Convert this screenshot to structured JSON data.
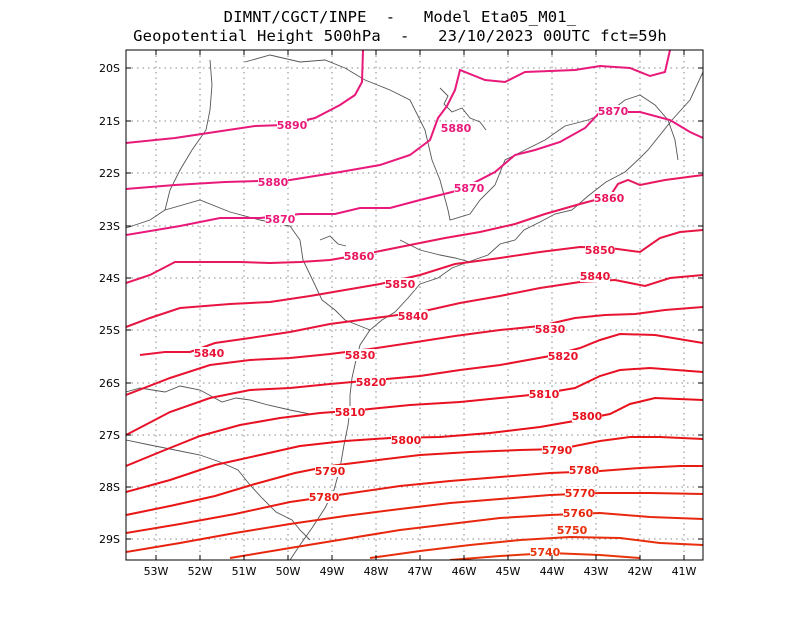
{
  "header": {
    "line1": "DIMNT/CGCT/INPE  -   Model Eta05_M01_",
    "line2": "Geopotential Height 500hPa  -   23/10/2023 00UTC fct=59h"
  },
  "map": {
    "lat_labels": [
      "20S",
      "21S",
      "22S",
      "23S",
      "24S",
      "25S",
      "26S",
      "27S",
      "28S",
      "29S"
    ],
    "lon_labels": [
      "53W",
      "52W",
      "51W",
      "50W",
      "49W",
      "48W",
      "47W",
      "46W",
      "45W",
      "44W",
      "43W",
      "42W",
      "41W"
    ],
    "lon_range": [
      -53.6,
      -40.5
    ],
    "lat_range": [
      -29.4,
      -19.6
    ]
  },
  "contour_colors": {
    "5890": "#e8197a",
    "5880": "#e8197a",
    "5870": "#e8197a",
    "5860": "#e8175e",
    "5850": "#e81543",
    "5840": "#e8143a",
    "5830": "#e81432",
    "5820": "#e8122a",
    "5810": "#e81122",
    "5800": "#e8101a",
    "5790": "#e81614",
    "5780": "#e81c12",
    "5770": "#e82210",
    "5760": "#e8280e",
    "5750": "#e82e0c",
    "5740": "#e8340a"
  },
  "contour_labels": [
    "5890",
    "5880",
    "5880",
    "5870",
    "5870",
    "5870",
    "5860",
    "5860",
    "5850",
    "5850",
    "5840",
    "5840",
    "5840",
    "5830",
    "5830",
    "5820",
    "5820",
    "5810",
    "5810",
    "5800",
    "5800",
    "5790",
    "5790",
    "5780",
    "5780",
    "5770",
    "5760",
    "5750",
    "5740"
  ]
}
